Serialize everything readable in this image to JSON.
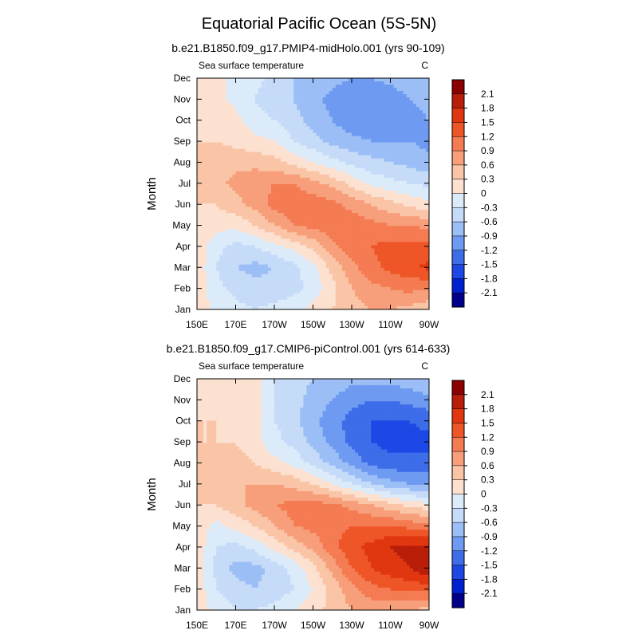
{
  "figure_title": "Equatorial Pacific Ocean (5S-5N)",
  "chart_data": [
    {
      "type": "heatmap",
      "title": "b.e21.B1850.f09_g17.PMIP4-midHolo.001 (yrs 90-109)",
      "subtitle_left": "Sea surface temperature",
      "units": "C",
      "xlabel": "",
      "ylabel": "Month",
      "x_ticks": [
        "150E",
        "170E",
        "170W",
        "150W",
        "130W",
        "110W",
        "90W"
      ],
      "y_ticks": [
        "Jan",
        "Feb",
        "Mar",
        "Apr",
        "May",
        "Jun",
        "Jul",
        "Aug",
        "Sep",
        "Oct",
        "Nov",
        "Dec"
      ],
      "contour_levels": [
        -2.1,
        -1.8,
        -1.5,
        -1.2,
        -0.9,
        -0.6,
        -0.3,
        0,
        0.3,
        0.6,
        0.9,
        1.2,
        1.5,
        1.8,
        2.1
      ],
      "colorbar_labels": [
        "2.1",
        "1.8",
        "1.5",
        "1.2",
        "0.9",
        "0.6",
        "0.3",
        "0",
        "-0.3",
        "-0.6",
        "-0.9",
        "-1.2",
        "-1.5",
        "-1.8",
        "-2.1"
      ],
      "longitudes": [
        150,
        160,
        170,
        180,
        190,
        200,
        210,
        220,
        230,
        240,
        250,
        260,
        270
      ],
      "values_by_month": [
        [
          0.2,
          -0.1,
          -0.2,
          -0.3,
          -0.2,
          -0.1,
          0.1,
          0.3,
          0.5,
          0.6,
          0.6,
          0.5,
          0.4
        ],
        [
          0.2,
          -0.2,
          -0.4,
          -0.5,
          -0.5,
          -0.4,
          -0.2,
          0.2,
          0.6,
          0.8,
          0.9,
          1.0,
          0.9
        ],
        [
          0.2,
          -0.3,
          -0.6,
          -0.7,
          -0.6,
          -0.4,
          -0.1,
          0.4,
          0.8,
          1.1,
          1.3,
          1.4,
          1.6
        ],
        [
          0.2,
          -0.2,
          -0.4,
          -0.3,
          -0.1,
          0.1,
          0.4,
          0.8,
          1.1,
          1.2,
          1.3,
          1.3,
          1.3
        ],
        [
          0.3,
          0.1,
          0.1,
          0.3,
          0.6,
          0.9,
          1.0,
          1.1,
          1.1,
          1.0,
          0.9,
          0.9,
          0.8
        ],
        [
          0.3,
          0.3,
          0.5,
          0.7,
          1.0,
          1.1,
          1.1,
          1.0,
          0.8,
          0.6,
          0.4,
          0.2,
          0.1
        ],
        [
          0.4,
          0.5,
          0.7,
          0.8,
          0.9,
          0.9,
          0.7,
          0.5,
          0.2,
          -0.1,
          -0.2,
          -0.3,
          -0.4
        ],
        [
          0.4,
          0.5,
          0.5,
          0.5,
          0.4,
          0.2,
          0.0,
          -0.2,
          -0.4,
          -0.5,
          -0.6,
          -0.7,
          -0.8
        ],
        [
          0.3,
          0.3,
          0.2,
          0.1,
          0.0,
          -0.3,
          -0.5,
          -0.7,
          -0.8,
          -0.9,
          -0.9,
          -0.9,
          -1.0
        ],
        [
          0.3,
          0.2,
          0.1,
          -0.2,
          -0.3,
          -0.5,
          -0.7,
          -0.9,
          -1.1,
          -1.2,
          -1.1,
          -1.0,
          -0.9
        ],
        [
          0.3,
          0.1,
          -0.1,
          -0.3,
          -0.5,
          -0.6,
          -0.8,
          -1.0,
          -1.1,
          -1.2,
          -1.1,
          -0.9,
          -0.8
        ],
        [
          0.3,
          0.1,
          -0.1,
          -0.2,
          -0.4,
          -0.6,
          -0.7,
          -0.8,
          -0.9,
          -0.9,
          -0.8,
          -0.7,
          -0.6
        ]
      ]
    },
    {
      "type": "heatmap",
      "title": "b.e21.B1850.f09_g17.CMIP6-piControl.001 (yrs 614-633)",
      "subtitle_left": "Sea surface temperature",
      "units": "C",
      "xlabel": "",
      "ylabel": "Month",
      "x_ticks": [
        "150E",
        "170E",
        "170W",
        "150W",
        "130W",
        "110W",
        "90W"
      ],
      "y_ticks": [
        "Jan",
        "Feb",
        "Mar",
        "Apr",
        "May",
        "Jun",
        "Jul",
        "Aug",
        "Sep",
        "Oct",
        "Nov",
        "Dec"
      ],
      "contour_levels": [
        -2.1,
        -1.8,
        -1.5,
        -1.2,
        -0.9,
        -0.6,
        -0.3,
        0,
        0.3,
        0.6,
        0.9,
        1.2,
        1.5,
        1.8,
        2.1
      ],
      "colorbar_labels": [
        "2.1",
        "1.8",
        "1.5",
        "1.2",
        "0.9",
        "0.6",
        "0.3",
        "0",
        "-0.3",
        "-0.6",
        "-0.9",
        "-1.2",
        "-1.5",
        "-1.8",
        "-2.1"
      ],
      "longitudes": [
        150,
        160,
        170,
        180,
        190,
        200,
        210,
        220,
        230,
        240,
        250,
        260,
        270
      ],
      "values_by_month": [
        [
          0.2,
          -0.1,
          -0.3,
          -0.3,
          -0.2,
          0.0,
          0.2,
          0.4,
          0.6,
          0.7,
          0.7,
          0.6,
          0.5
        ],
        [
          0.2,
          -0.3,
          -0.5,
          -0.6,
          -0.5,
          -0.3,
          0.0,
          0.4,
          0.8,
          1.1,
          1.2,
          1.3,
          1.3
        ],
        [
          0.2,
          -0.4,
          -0.7,
          -0.7,
          -0.5,
          -0.2,
          0.2,
          0.7,
          1.2,
          1.5,
          1.7,
          1.8,
          2.1
        ],
        [
          0.2,
          -0.3,
          -0.4,
          -0.2,
          0.1,
          0.4,
          0.7,
          1.1,
          1.4,
          1.6,
          1.8,
          1.9,
          1.9
        ],
        [
          0.2,
          -0.1,
          0.1,
          0.3,
          0.6,
          0.9,
          1.0,
          1.1,
          1.2,
          1.2,
          1.2,
          1.1,
          1.0
        ],
        [
          0.3,
          0.3,
          0.5,
          0.7,
          0.9,
          1.0,
          1.0,
          1.0,
          0.8,
          0.6,
          0.4,
          0.2,
          0.1
        ],
        [
          0.4,
          0.5,
          0.6,
          0.6,
          0.6,
          0.5,
          0.3,
          0.0,
          -0.3,
          -0.6,
          -0.8,
          -0.9,
          -1.0
        ],
        [
          0.4,
          0.4,
          0.4,
          0.3,
          0.1,
          -0.1,
          -0.4,
          -0.7,
          -1.0,
          -1.3,
          -1.4,
          -1.4,
          -1.4
        ],
        [
          0.3,
          0.3,
          0.3,
          0.1,
          -0.2,
          -0.4,
          -0.7,
          -1.0,
          -1.3,
          -1.5,
          -1.6,
          -1.6,
          -1.6
        ],
        [
          0.3,
          0.3,
          0.2,
          0.1,
          -0.3,
          -0.5,
          -0.8,
          -1.1,
          -1.3,
          -1.5,
          -1.5,
          -1.5,
          -1.4
        ],
        [
          0.3,
          0.2,
          0.2,
          0.1,
          -0.3,
          -0.5,
          -0.7,
          -0.9,
          -1.1,
          -1.2,
          -1.2,
          -1.1,
          -1.0
        ],
        [
          0.3,
          0.2,
          0.2,
          0.1,
          -0.3,
          -0.5,
          -0.6,
          -0.7,
          -0.8,
          -0.8,
          -0.8,
          -0.7,
          -0.6
        ]
      ]
    }
  ],
  "colors": {
    "palette": [
      "#01008a",
      "#0021d0",
      "#1d48e6",
      "#3d6de9",
      "#6e9af1",
      "#9cbef6",
      "#c5dbf8",
      "#dcebfa",
      "#fce0d0",
      "#fac4a6",
      "#f79f7a",
      "#f47b52",
      "#ee5527",
      "#e03710",
      "#b81e09",
      "#8b0000"
    ],
    "axis": "#000000",
    "background": "#ffffff"
  }
}
